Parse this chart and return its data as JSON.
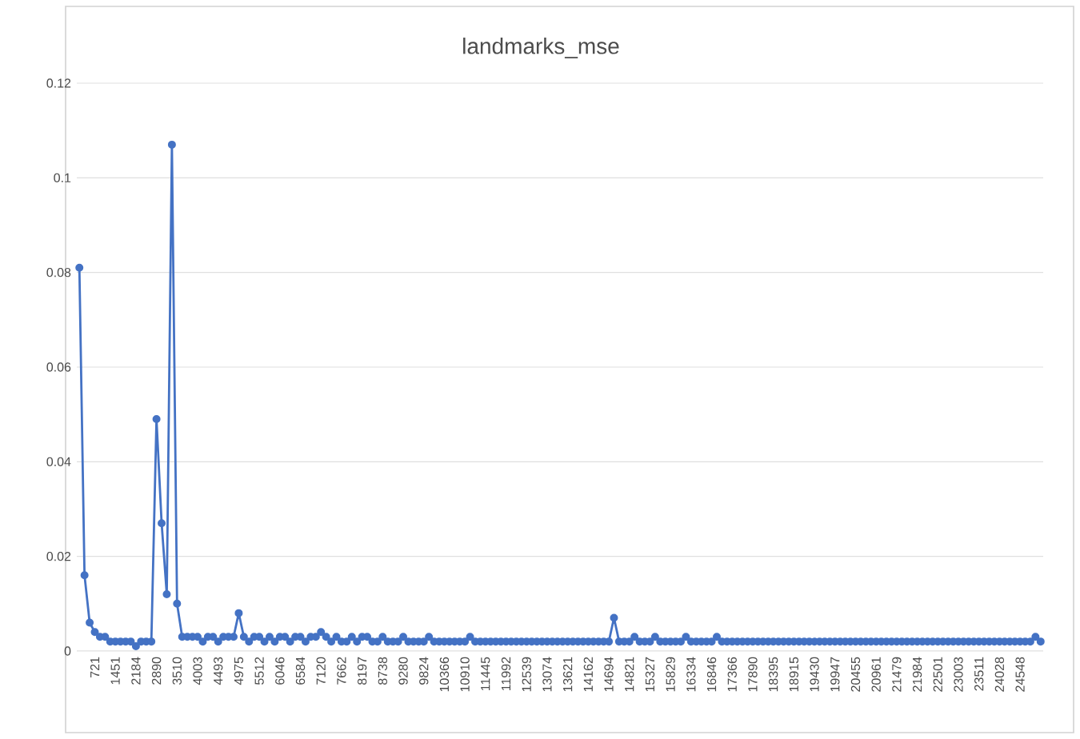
{
  "chart_data": {
    "type": "line",
    "title": "landmarks_mse",
    "categories": [
      null,
      null,
      null,
      "721",
      null,
      null,
      null,
      "1451",
      null,
      null,
      null,
      "2184",
      null,
      null,
      null,
      "2890",
      null,
      null,
      null,
      "3510",
      null,
      null,
      null,
      "4003",
      null,
      null,
      null,
      "4493",
      null,
      null,
      null,
      "4975",
      null,
      null,
      null,
      "5512",
      null,
      null,
      null,
      "6046",
      null,
      null,
      null,
      "6584",
      null,
      null,
      null,
      "7120",
      null,
      null,
      null,
      "7662",
      null,
      null,
      null,
      "8197",
      null,
      null,
      null,
      "8738",
      null,
      null,
      null,
      "9280",
      null,
      null,
      null,
      "9824",
      null,
      null,
      null,
      "10366",
      null,
      null,
      null,
      "10910",
      null,
      null,
      null,
      "11445",
      null,
      null,
      null,
      "11992",
      null,
      null,
      null,
      "12539",
      null,
      null,
      null,
      "13074",
      null,
      null,
      null,
      "13621",
      null,
      null,
      null,
      "14162",
      null,
      null,
      null,
      "14694",
      null,
      null,
      null,
      "14821",
      null,
      null,
      null,
      "15327",
      null,
      null,
      null,
      "15829",
      null,
      null,
      null,
      "16334",
      null,
      null,
      null,
      "16846",
      null,
      null,
      null,
      "17366",
      null,
      null,
      null,
      "17890",
      null,
      null,
      null,
      "18395",
      null,
      null,
      null,
      "18915",
      null,
      null,
      null,
      "19430",
      null,
      null,
      null,
      "19947",
      null,
      null,
      null,
      "20455",
      null,
      null,
      null,
      "20961",
      null,
      null,
      null,
      "21479",
      null,
      null,
      null,
      "21984",
      null,
      null,
      null,
      "22501",
      null,
      null,
      null,
      "23003",
      null,
      null,
      null,
      "23511",
      null,
      null,
      null,
      "24028",
      null,
      null,
      null,
      "24548",
      null,
      null,
      null,
      null
    ],
    "values": [
      0.081,
      0.016,
      0.006,
      0.004,
      0.003,
      0.003,
      0.002,
      0.002,
      0.002,
      0.002,
      0.002,
      0.001,
      0.002,
      0.002,
      0.002,
      0.049,
      0.027,
      0.012,
      0.107,
      0.01,
      0.003,
      0.003,
      0.003,
      0.003,
      0.002,
      0.003,
      0.003,
      0.002,
      0.003,
      0.003,
      0.003,
      0.008,
      0.003,
      0.002,
      0.003,
      0.003,
      0.002,
      0.003,
      0.002,
      0.003,
      0.003,
      0.002,
      0.003,
      0.003,
      0.002,
      0.003,
      0.003,
      0.004,
      0.003,
      0.002,
      0.003,
      0.002,
      0.002,
      0.003,
      0.002,
      0.003,
      0.003,
      0.002,
      0.002,
      0.003,
      0.002,
      0.002,
      0.002,
      0.003,
      0.002,
      0.002,
      0.002,
      0.002,
      0.003,
      0.002,
      0.002,
      0.002,
      0.002,
      0.002,
      0.002,
      0.002,
      0.003,
      0.002,
      0.002,
      0.002,
      0.002,
      0.002,
      0.002,
      0.002,
      0.002,
      0.002,
      0.002,
      0.002,
      0.002,
      0.002,
      0.002,
      0.002,
      0.002,
      0.002,
      0.002,
      0.002,
      0.002,
      0.002,
      0.002,
      0.002,
      0.002,
      0.002,
      0.002,
      0.002,
      0.007,
      0.002,
      0.002,
      0.002,
      0.003,
      0.002,
      0.002,
      0.002,
      0.003,
      0.002,
      0.002,
      0.002,
      0.002,
      0.002,
      0.003,
      0.002,
      0.002,
      0.002,
      0.002,
      0.002,
      0.003,
      0.002,
      0.002,
      0.002,
      0.002,
      0.002,
      0.002,
      0.002,
      0.002,
      0.002,
      0.002,
      0.002,
      0.002,
      0.002,
      0.002,
      0.002,
      0.002,
      0.002,
      0.002,
      0.002,
      0.002,
      0.002,
      0.002,
      0.002,
      0.002,
      0.002,
      0.002,
      0.002,
      0.002,
      0.002,
      0.002,
      0.002,
      0.002,
      0.002,
      0.002,
      0.002,
      0.002,
      0.002,
      0.002,
      0.002,
      0.002,
      0.002,
      0.002,
      0.002,
      0.002,
      0.002,
      0.002,
      0.002,
      0.002,
      0.002,
      0.002,
      0.002,
      0.002,
      0.002,
      0.002,
      0.002,
      0.002,
      0.002,
      0.002,
      0.002,
      0.002,
      0.002,
      0.003,
      0.002
    ],
    "color": "#4472c4",
    "marker": "circle",
    "line_style": "solid",
    "ylim": [
      0,
      0.12
    ],
    "yticks": [
      0,
      0.02,
      0.04,
      0.06,
      0.08,
      0.1,
      0.12
    ],
    "grid": "y"
  }
}
